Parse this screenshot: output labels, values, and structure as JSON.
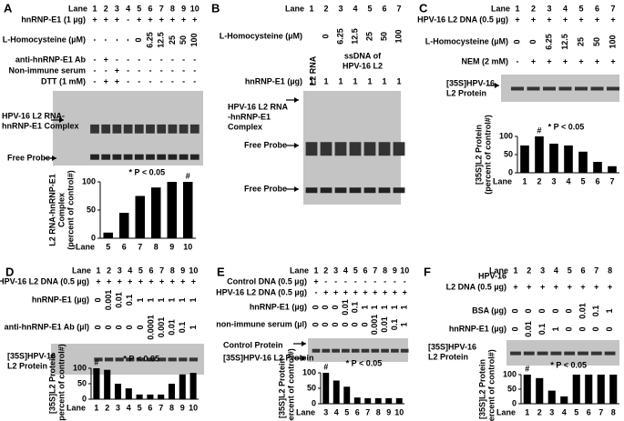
{
  "panels": [
    {
      "letter": "A",
      "lane_label": "Lane",
      "lanes": [
        "1",
        "2",
        "3",
        "4",
        "5",
        "6",
        "7",
        "8",
        "9",
        "10"
      ],
      "rows": [
        {
          "label": "hnRNP-E1 (1 µg)",
          "cells": [
            "+",
            "+",
            "+",
            "-",
            "+",
            "+",
            "+",
            "+",
            "+",
            "+"
          ]
        },
        {
          "label": "L-Homocysteine (µM)",
          "cells": [
            "-",
            "-",
            "-",
            "-",
            "0",
            "6.25",
            "12.5",
            "25",
            "50",
            "100"
          ]
        },
        {
          "label": "anti-hnRNP-E1 Ab",
          "cells": [
            "-",
            "+",
            "-",
            "-",
            "-",
            "-",
            "-",
            "-",
            "-",
            "-"
          ]
        },
        {
          "label": "Non-immune serum",
          "cells": [
            "-",
            "-",
            "+",
            "-",
            "-",
            "-",
            "-",
            "-",
            "-",
            "-"
          ]
        },
        {
          "label": "DTT (1 mM)",
          "cells": [
            "-",
            "+",
            "+",
            "-",
            "-",
            "-",
            "-",
            "-",
            "-",
            "-"
          ]
        }
      ],
      "gel_labels": [
        [
          "HPV-16 L2 RNA-",
          "hnRNP-E1 Complex"
        ],
        [
          "Free Probe"
        ]
      ],
      "chart": {
        "type": "bar",
        "ylabel": [
          "L2 RNA-hnRNP-E1",
          "Complex",
          "(percent of control#)"
        ],
        "xlabel": "Lane",
        "categories": [
          "5",
          "6",
          "7",
          "8",
          "9",
          "10"
        ],
        "values": [
          10,
          45,
          75,
          90,
          100,
          100
        ],
        "ylim": [
          0,
          100
        ],
        "yticks": [
          0,
          50,
          100
        ],
        "annotations": [
          {
            "category": "10",
            "text": "#"
          }
        ],
        "note": "* P < 0.05",
        "color": "#000000"
      }
    },
    {
      "letter": "B",
      "lane_label": "Lane",
      "lanes": [
        "1",
        "2",
        "3",
        "4",
        "5",
        "6",
        "7"
      ],
      "rows": [
        {
          "label": "L-Homocysteine (µM)",
          "cells": [
            null,
            "0",
            "6.25",
            "12.5",
            "25",
            "50",
            "100"
          ]
        },
        {
          "label": "hnRNP-E1 (µg)",
          "cells": [
            "1",
            "1",
            "1",
            "1",
            "1",
            "1",
            "1"
          ]
        }
      ],
      "gel_labels": [
        [
          "L2 RNA"
        ],
        [
          "ssDNA of",
          "HPV-16 L2"
        ],
        [
          "HPV-16 L2 RNA",
          "-hnRNP-E1",
          "Complex"
        ],
        [
          "Free Probe"
        ],
        [
          "Free Probe"
        ]
      ]
    },
    {
      "letter": "C",
      "lane_label": "Lane",
      "lanes": [
        "1",
        "2",
        "3",
        "4",
        "5",
        "6",
        "7"
      ],
      "rows": [
        {
          "label": "HPV-16 L2 DNA (0.5 µg)",
          "cells": [
            "+",
            "+",
            "+",
            "+",
            "+",
            "+",
            "+"
          ]
        },
        {
          "label": "L-Homocysteine (µM)",
          "cells": [
            "0",
            "0",
            "6.25",
            "12.5",
            "25",
            "50",
            "100"
          ]
        },
        {
          "label": "NEM (2 mM)",
          "cells": [
            "-",
            "+",
            "+",
            "+",
            "+",
            "+",
            "+"
          ]
        }
      ],
      "gel_labels": [
        [
          "[35S]HPV-16",
          "L2 Protein"
        ]
      ],
      "chart": {
        "type": "bar",
        "ylabel": [
          "[35S]L2 Protein",
          "(percent of control#)"
        ],
        "xlabel": "Lane",
        "categories": [
          "1",
          "2",
          "3",
          "4",
          "5",
          "6",
          "7"
        ],
        "values": [
          75,
          100,
          80,
          75,
          58,
          30,
          18
        ],
        "ylim": [
          0,
          100
        ],
        "yticks": [
          0,
          50,
          100
        ],
        "annotations": [
          {
            "category": "2",
            "text": "#"
          }
        ],
        "note": "* P < 0.05",
        "color": "#000000"
      }
    },
    {
      "letter": "D",
      "lane_label": "Lane",
      "lanes": [
        "1",
        "2",
        "3",
        "4",
        "5",
        "6",
        "7",
        "8",
        "9",
        "10"
      ],
      "rows": [
        {
          "label": "HPV-16 L2 DNA (0.5 µg)",
          "cells": [
            "+",
            "+",
            "+",
            "+",
            "+",
            "+",
            "+",
            "+",
            "+",
            "+"
          ]
        },
        {
          "label": "hnRNP-E1 (µg)",
          "cells": [
            "0",
            "0.001",
            "0.01",
            "0.1",
            "1",
            "1",
            "1",
            "1",
            "1",
            "1"
          ]
        },
        {
          "label": "anti-hnRNP-E1 Ab (µl)",
          "cells": [
            "0",
            "0",
            "0",
            "0",
            "0",
            "0.0001",
            "0.001",
            "0.01",
            "0.1",
            "1"
          ]
        }
      ],
      "gel_labels": [
        [
          "[35S]HPV-16",
          "L2 Protein"
        ]
      ],
      "chart": {
        "type": "bar",
        "ylabel": [
          "[35S]L2 Protein",
          "(percent of control#)"
        ],
        "xlabel": "Lane",
        "categories": [
          "1",
          "2",
          "3",
          "4",
          "5",
          "6",
          "7",
          "8",
          "9",
          "10"
        ],
        "values": [
          100,
          95,
          50,
          35,
          15,
          15,
          15,
          50,
          80,
          85
        ],
        "ylim": [
          0,
          100
        ],
        "yticks": [
          0,
          50,
          100
        ],
        "annotations": [
          {
            "category": "1",
            "text": "#"
          }
        ],
        "note": "* P < 0.05",
        "color": "#000000"
      }
    },
    {
      "letter": "E",
      "lane_label": "Lane",
      "lanes": [
        "1",
        "2",
        "3",
        "4",
        "5",
        "6",
        "7",
        "8",
        "9",
        "10"
      ],
      "rows": [
        {
          "label": "Control DNA (0.5 µg)",
          "cells": [
            "+",
            "-",
            "-",
            "-",
            "-",
            "-",
            "-",
            "-",
            "-",
            "-"
          ]
        },
        {
          "label": "HPV-16 L2 DNA (0.5 µg)",
          "cells": [
            "-",
            "+",
            "+",
            "+",
            "+",
            "+",
            "+",
            "+",
            "+",
            "+"
          ]
        },
        {
          "label": "hnRNP-E1 (µg)",
          "cells": [
            "0",
            "0",
            "0",
            "0.01",
            "0.1",
            "1",
            "1",
            "1",
            "1",
            "1"
          ]
        },
        {
          "label": "non-immune serum (µl)",
          "cells": [
            "0",
            "0",
            "0",
            "0",
            "0",
            "0",
            "0.001",
            "0.01",
            "0.1",
            "1"
          ]
        }
      ],
      "gel_labels": [
        [
          "Control Protein"
        ],
        [
          "[35S]HPV-16 L2 Protein"
        ]
      ],
      "chart": {
        "type": "bar",
        "ylabel": [
          "[35S]L2 Protein",
          "(percent of control#)"
        ],
        "xlabel": "Lane",
        "categories": [
          "3",
          "4",
          "5",
          "6",
          "7",
          "8",
          "9",
          "10"
        ],
        "values": [
          100,
          75,
          55,
          20,
          18,
          18,
          18,
          18
        ],
        "ylim": [
          0,
          100
        ],
        "yticks": [
          0,
          50,
          100
        ],
        "annotations": [
          {
            "category": "3",
            "text": "#"
          }
        ],
        "note": "* P < 0.05",
        "color": "#000000"
      }
    },
    {
      "letter": "F",
      "lane_label": "Lane",
      "lanes": [
        "1",
        "2",
        "3",
        "4",
        "5",
        "6",
        "7",
        "8"
      ],
      "rows": [
        {
          "label": [
            "HPV-16",
            "L2 DNA (0.5 µg)"
          ],
          "cells": [
            "+",
            "+",
            "+",
            "+",
            "+",
            "+",
            "+",
            "+"
          ]
        },
        {
          "label": "BSA (µg)",
          "cells": [
            "0",
            "0",
            "0",
            "0",
            "0",
            "0.01",
            "0.1",
            "1"
          ]
        },
        {
          "label": "hnRNP-E1 (µg)",
          "cells": [
            "0",
            "0.01",
            "0.1",
            "1",
            "0",
            "0",
            "0",
            "0"
          ]
        }
      ],
      "gel_labels": [
        [
          "[35S]HPV-16",
          "L2 Protein"
        ]
      ],
      "chart": {
        "type": "bar",
        "ylabel": [
          "[35S]L2 Protein",
          "(percent of control#)"
        ],
        "xlabel": "Lane",
        "categories": [
          "1",
          "2",
          "3",
          "4",
          "5",
          "6",
          "7",
          "8"
        ],
        "values": [
          100,
          88,
          45,
          25,
          100,
          100,
          100,
          100
        ],
        "ylim": [
          0,
          100
        ],
        "yticks": [
          0,
          50,
          100
        ],
        "annotations": [
          {
            "category": "1",
            "text": "#"
          }
        ],
        "note": "* P < 0.05",
        "color": "#000000"
      }
    }
  ]
}
